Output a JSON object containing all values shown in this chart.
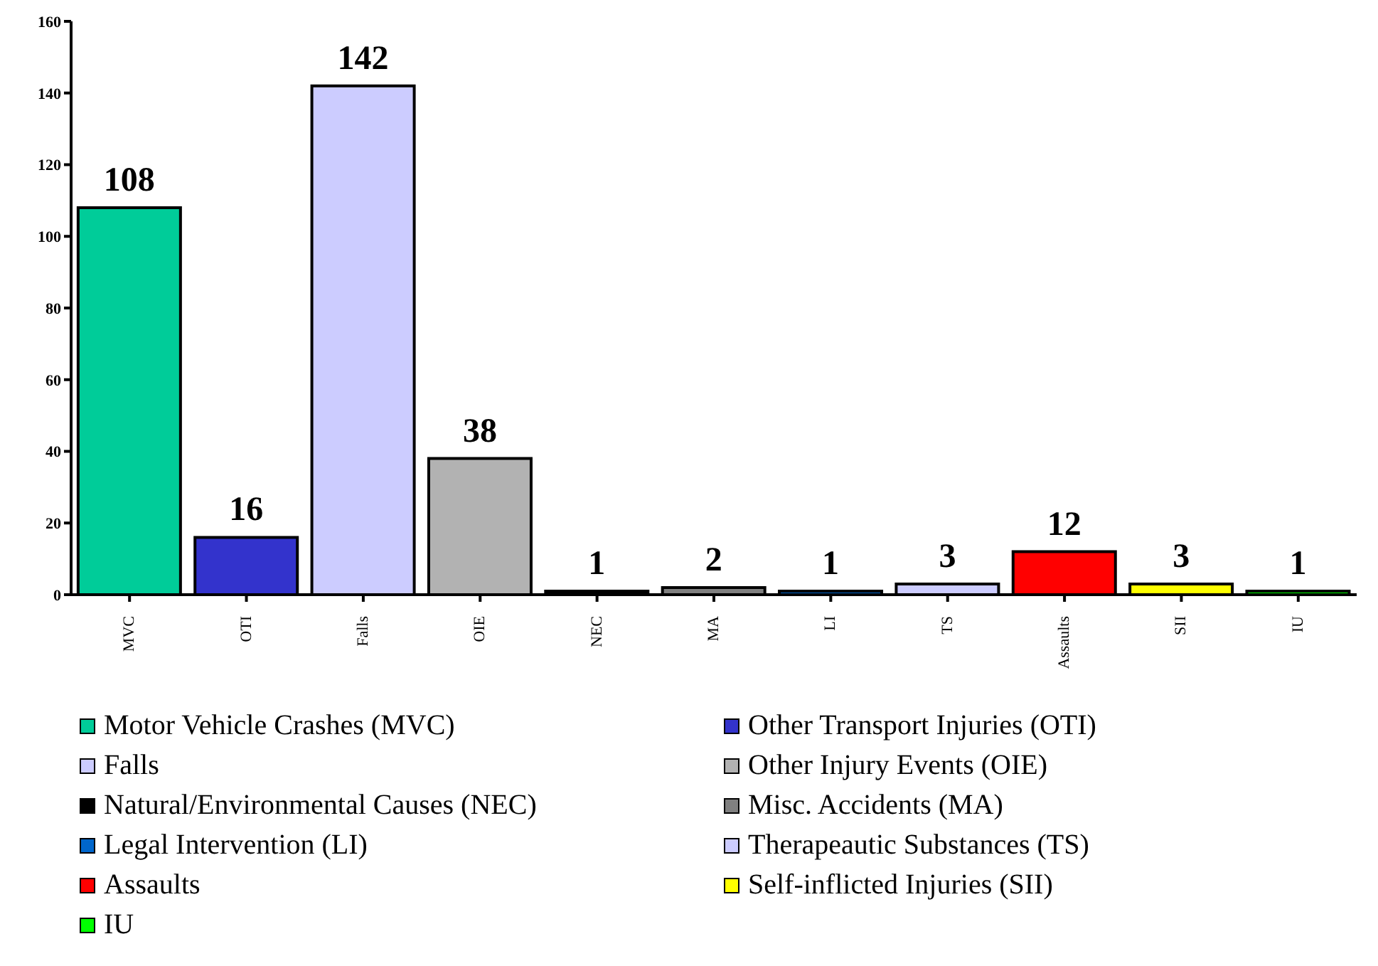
{
  "chart_data": {
    "type": "bar",
    "stacked": true,
    "categories": [
      "MVC",
      "OTI",
      "Falls",
      "OIE",
      "NEC",
      "MA",
      "LI",
      "TS",
      "Assaults",
      "SII",
      "IU"
    ],
    "series": [
      {
        "name": "Motor Vehicle Crashes (MVC)",
        "color": "#00cc99",
        "values": [
          108,
          null,
          null,
          null,
          null,
          null,
          null,
          null,
          null,
          null,
          null
        ]
      },
      {
        "name": "Other Transport Injuries (OTI)",
        "color": "#3333cc",
        "values": [
          null,
          16,
          null,
          null,
          null,
          null,
          null,
          null,
          null,
          null,
          null
        ]
      },
      {
        "name": "Falls",
        "color": "#ccccff",
        "values": [
          null,
          null,
          142,
          null,
          null,
          null,
          null,
          null,
          null,
          null,
          null
        ]
      },
      {
        "name": "Other Injury Events (OIE)",
        "color": "#b2b2b2",
        "values": [
          null,
          null,
          null,
          38,
          null,
          null,
          null,
          null,
          null,
          null,
          null
        ]
      },
      {
        "name": "Natural/Environmental Causes (NEC)",
        "color": "#000000",
        "values": [
          null,
          null,
          null,
          null,
          1,
          null,
          null,
          null,
          null,
          null,
          null
        ]
      },
      {
        "name": "Misc. Accidents (MA)",
        "color": "#808080",
        "values": [
          null,
          null,
          null,
          null,
          null,
          2,
          null,
          null,
          null,
          null,
          null
        ]
      },
      {
        "name": "Legal Intervention (LI)",
        "color": "#0066cc",
        "values": [
          null,
          null,
          null,
          null,
          null,
          null,
          1,
          null,
          null,
          null,
          null
        ]
      },
      {
        "name": "Therapeautic Substances (TS)",
        "color": "#ccccff",
        "values": [
          null,
          null,
          null,
          null,
          null,
          null,
          null,
          3,
          null,
          null,
          null
        ]
      },
      {
        "name": "Assaults",
        "color": "#ff0000",
        "values": [
          null,
          null,
          null,
          null,
          null,
          null,
          null,
          null,
          12,
          null,
          null
        ]
      },
      {
        "name": "Self-inflicted Injuries (SII)",
        "color": "#ffff00",
        "values": [
          null,
          null,
          null,
          null,
          null,
          null,
          null,
          null,
          null,
          3,
          null
        ]
      },
      {
        "name": "IU",
        "color": "#00ff00",
        "values": [
          null,
          null,
          null,
          null,
          null,
          null,
          null,
          null,
          null,
          null,
          1
        ]
      }
    ],
    "ylim": [
      0,
      160
    ],
    "yticks": [
      0,
      20,
      40,
      60,
      80,
      100,
      120,
      140,
      160
    ],
    "data_labels": true,
    "legend": "bottom",
    "grid": false
  }
}
